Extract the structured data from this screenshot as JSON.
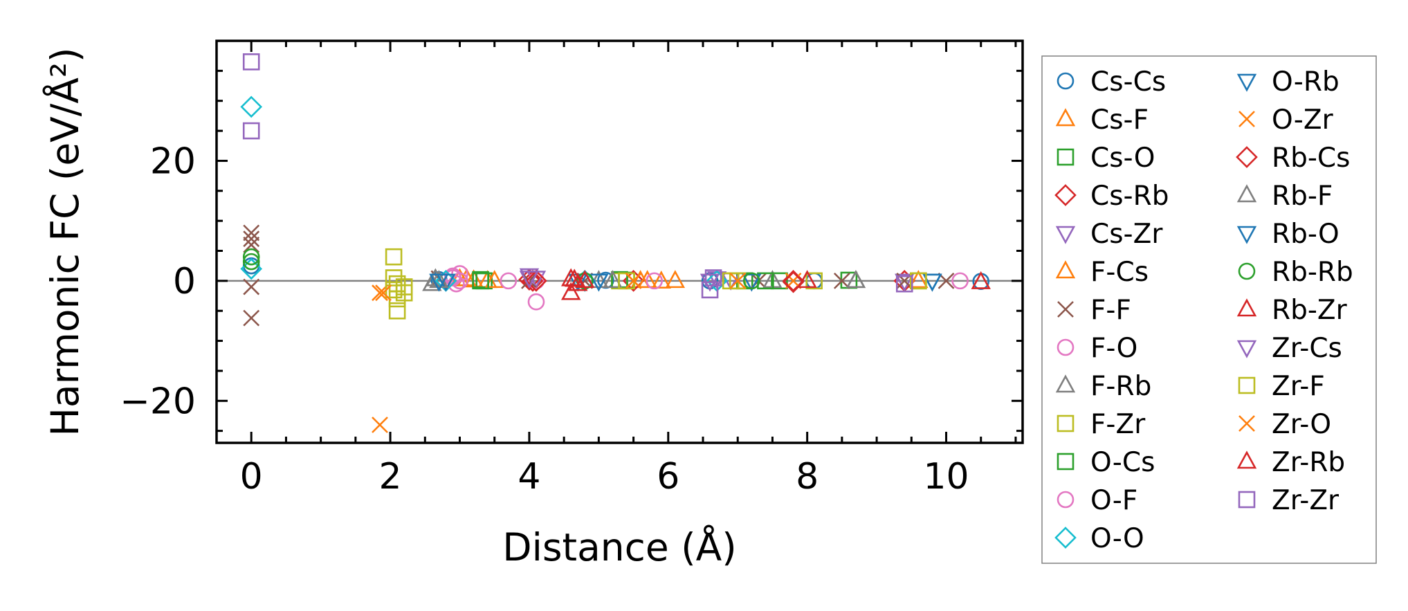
{
  "chart_data": {
    "type": "scatter",
    "xlabel": "Distance (Å)",
    "ylabel": "Harmonic FC (eV/Å²)",
    "xlim": [
      -0.5,
      11.1
    ],
    "ylim": [
      -27,
      40
    ],
    "x_ticks": [
      0,
      2,
      4,
      6,
      8,
      10
    ],
    "y_ticks": [
      -20,
      0,
      20
    ],
    "tick_labels_x": [
      "0",
      "2",
      "4",
      "6",
      "8",
      "10"
    ],
    "tick_labels_y": [
      "−20",
      "0",
      "20"
    ],
    "zero_line": true,
    "legend_location": "outside-right",
    "legend_columns": 2,
    "series": [
      {
        "name": "Cs-Cs",
        "marker": "circle",
        "color": "#1f77b4",
        "points": [
          [
            0,
            2.5
          ],
          [
            2.7,
            0.2
          ],
          [
            5.1,
            0.1
          ],
          [
            6.6,
            0.0
          ],
          [
            8.1,
            0.0
          ],
          [
            10.5,
            -0.1
          ]
        ]
      },
      {
        "name": "Cs-F",
        "marker": "triangle-up",
        "color": "#ff7f0e",
        "points": [
          [
            3.0,
            0.3
          ],
          [
            3.2,
            0.1
          ],
          [
            3.4,
            0.0
          ],
          [
            5.6,
            0.0
          ],
          [
            5.9,
            -0.1
          ],
          [
            6.1,
            0.0
          ]
        ]
      },
      {
        "name": "Cs-O",
        "marker": "square",
        "color": "#2ca02c",
        "points": [
          [
            3.3,
            0.2
          ],
          [
            3.35,
            0.0
          ],
          [
            5.4,
            0.1
          ],
          [
            7.1,
            0.0
          ],
          [
            7.6,
            0.0
          ],
          [
            8.6,
            0.1
          ]
        ]
      },
      {
        "name": "Cs-Rb",
        "marker": "diamond",
        "color": "#d62728",
        "points": [
          [
            4.0,
            0.2
          ],
          [
            4.05,
            0.0
          ],
          [
            5.5,
            0.0
          ],
          [
            7.8,
            0.0
          ],
          [
            9.4,
            0.0
          ]
        ]
      },
      {
        "name": "Cs-Zr",
        "marker": "triangle-down",
        "color": "#9467bd",
        "points": [
          [
            4.0,
            0.9
          ],
          [
            4.1,
            0.5
          ],
          [
            6.7,
            0.4
          ],
          [
            6.9,
            0.2
          ],
          [
            9.4,
            0.0
          ]
        ]
      },
      {
        "name": "F-Cs",
        "marker": "triangle-up",
        "color": "#ff7f0e",
        "points": [
          [
            3.1,
            0.3
          ],
          [
            3.5,
            0.0
          ],
          [
            5.7,
            0.0
          ],
          [
            9.6,
            0.0
          ]
        ]
      },
      {
        "name": "F-F",
        "marker": "x",
        "color": "#8c564b",
        "points": [
          [
            0,
            8.0
          ],
          [
            0,
            7.0
          ],
          [
            0,
            6.0
          ],
          [
            0,
            -1.0
          ],
          [
            0,
            -6.2
          ],
          [
            2.7,
            0.4
          ],
          [
            4.0,
            0.0
          ],
          [
            4.8,
            0.0
          ],
          [
            7.3,
            0.0
          ],
          [
            8.5,
            0.0
          ],
          [
            9.4,
            0.0
          ],
          [
            10.0,
            0.0
          ]
        ]
      },
      {
        "name": "F-O",
        "marker": "circle",
        "color": "#e377c2",
        "points": [
          [
            2.9,
            0.5
          ],
          [
            2.95,
            -0.5
          ],
          [
            3.0,
            1.2
          ],
          [
            3.7,
            0.0
          ],
          [
            4.1,
            -3.5
          ],
          [
            5.8,
            0.0
          ],
          [
            10.2,
            0.0
          ]
        ]
      },
      {
        "name": "F-Rb",
        "marker": "triangle-up",
        "color": "#7f7f7f",
        "points": [
          [
            2.6,
            -0.5
          ],
          [
            2.65,
            0.3
          ],
          [
            5.0,
            0.0
          ],
          [
            7.5,
            0.0
          ],
          [
            8.7,
            0.0
          ]
        ]
      },
      {
        "name": "F-Zr",
        "marker": "square",
        "color": "#bcbd22",
        "points": [
          [
            2.05,
            0.5
          ],
          [
            2.1,
            -0.5
          ],
          [
            2.2,
            -2.0
          ],
          [
            5.3,
            0.0
          ],
          [
            7.0,
            0.0
          ],
          [
            9.6,
            0.0
          ]
        ]
      },
      {
        "name": "O-Cs",
        "marker": "square",
        "color": "#2ca02c",
        "points": [
          [
            3.3,
            0.0
          ],
          [
            5.3,
            0.2
          ],
          [
            7.4,
            0.0
          ]
        ]
      },
      {
        "name": "O-F",
        "marker": "circle",
        "color": "#e377c2",
        "points": [
          [
            2.9,
            0.8
          ],
          [
            3.0,
            0.0
          ],
          [
            4.1,
            0.0
          ]
        ]
      },
      {
        "name": "O-O",
        "marker": "diamond",
        "color": "#17becf",
        "points": [
          [
            0,
            29.0
          ],
          [
            0,
            2.0
          ],
          [
            2.8,
            0.0
          ],
          [
            4.8,
            0.0
          ],
          [
            6.7,
            0.0
          ]
        ]
      },
      {
        "name": "O-Rb",
        "marker": "triangle-down",
        "color": "#1f77b4",
        "points": [
          [
            2.8,
            0.0
          ],
          [
            4.7,
            0.0
          ],
          [
            7.2,
            0.0
          ],
          [
            9.8,
            0.0
          ]
        ]
      },
      {
        "name": "O-Zr",
        "marker": "x",
        "color": "#ff7f0e",
        "points": [
          [
            1.85,
            -2.0
          ],
          [
            1.85,
            -24.0
          ],
          [
            5.5,
            0.0
          ],
          [
            7.8,
            0.0
          ]
        ]
      },
      {
        "name": "Rb-Cs",
        "marker": "diamond",
        "color": "#d62728",
        "points": [
          [
            4.1,
            0.0
          ],
          [
            7.8,
            -0.2
          ]
        ]
      },
      {
        "name": "Rb-F",
        "marker": "triangle-up",
        "color": "#7f7f7f",
        "points": [
          [
            2.7,
            0.0
          ],
          [
            5.2,
            0.0
          ],
          [
            8.7,
            0.0
          ]
        ]
      },
      {
        "name": "Rb-O",
        "marker": "triangle-down",
        "color": "#1f77b4",
        "points": [
          [
            2.7,
            0.0
          ],
          [
            5.0,
            0.0
          ],
          [
            9.8,
            0.0
          ]
        ]
      },
      {
        "name": "Rb-Rb",
        "marker": "circle",
        "color": "#2ca02c",
        "points": [
          [
            0,
            4.0
          ],
          [
            0,
            3.2
          ],
          [
            4.8,
            0.0
          ],
          [
            7.2,
            0.0
          ]
        ]
      },
      {
        "name": "Rb-Zr",
        "marker": "triangle-up",
        "color": "#d62728",
        "points": [
          [
            4.6,
            -2.0
          ],
          [
            4.6,
            0.3
          ],
          [
            4.7,
            -0.5
          ],
          [
            4.8,
            0.0
          ],
          [
            10.5,
            -0.2
          ]
        ]
      },
      {
        "name": "Zr-Cs",
        "marker": "triangle-down",
        "color": "#9467bd",
        "points": [
          [
            4.0,
            0.5
          ],
          [
            6.6,
            0.0
          ]
        ]
      },
      {
        "name": "Zr-F",
        "marker": "square",
        "color": "#bcbd22",
        "points": [
          [
            2.05,
            4.0
          ],
          [
            2.05,
            -1.5
          ],
          [
            2.1,
            -3.0
          ],
          [
            2.1,
            -5.0
          ],
          [
            2.2,
            -1.0
          ],
          [
            5.4,
            0.0
          ],
          [
            6.9,
            0.0
          ],
          [
            8.1,
            0.0
          ],
          [
            9.6,
            0.0
          ]
        ]
      },
      {
        "name": "Zr-O",
        "marker": "x",
        "color": "#ff7f0e",
        "points": [
          [
            1.9,
            -2.0
          ],
          [
            5.5,
            0.0
          ],
          [
            7.0,
            0.0
          ]
        ]
      },
      {
        "name": "Zr-Rb",
        "marker": "triangle-up",
        "color": "#d62728",
        "points": [
          [
            4.65,
            0.2
          ],
          [
            8.0,
            0.0
          ]
        ]
      },
      {
        "name": "Zr-Zr",
        "marker": "square",
        "color": "#9467bd",
        "points": [
          [
            0,
            36.5
          ],
          [
            0,
            25.0
          ],
          [
            6.6,
            -1.5
          ],
          [
            6.65,
            0.5
          ],
          [
            9.4,
            -0.5
          ]
        ]
      }
    ]
  }
}
